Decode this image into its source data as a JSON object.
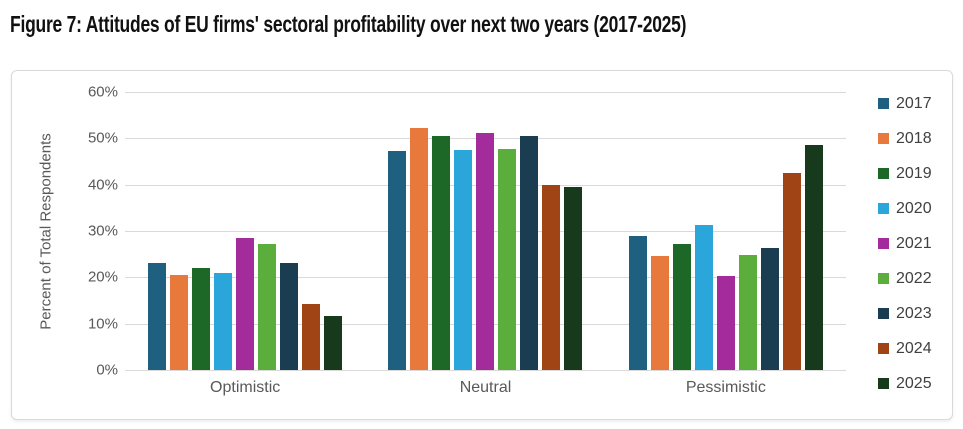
{
  "figure_title": "Figure 7: Attitudes of EU firms' sectoral profitability over next two years (2017-2025)",
  "chart_data": {
    "type": "bar",
    "title": "Figure 7: Attitudes of EU firms' sectoral profitability over next two years (2017-2025)",
    "xlabel": "",
    "ylabel": "Percent of Total Respondents",
    "ylim": [
      0,
      60
    ],
    "y_ticks": [
      "0%",
      "10%",
      "20%",
      "30%",
      "40%",
      "50%",
      "60%"
    ],
    "grid": true,
    "legend_position": "right",
    "categories": [
      "Optimistic",
      "Neutral",
      "Pessimistic"
    ],
    "series": [
      {
        "name": "2017",
        "color": "#1f5f80",
        "values": [
          23.0,
          47.3,
          29.0
        ]
      },
      {
        "name": "2018",
        "color": "#e8793c",
        "values": [
          20.6,
          52.2,
          24.5
        ]
      },
      {
        "name": "2019",
        "color": "#1e6827",
        "values": [
          22.0,
          50.4,
          27.3
        ]
      },
      {
        "name": "2020",
        "color": "#2ba6db",
        "values": [
          21.0,
          47.5,
          31.4
        ]
      },
      {
        "name": "2021",
        "color": "#a42b9b",
        "values": [
          28.6,
          51.1,
          20.2
        ]
      },
      {
        "name": "2022",
        "color": "#5cae3c",
        "values": [
          27.2,
          47.8,
          24.8
        ]
      },
      {
        "name": "2023",
        "color": "#1b3d52",
        "values": [
          23.0,
          50.4,
          26.4
        ]
      },
      {
        "name": "2024",
        "color": "#a04416",
        "values": [
          14.3,
          39.9,
          42.5
        ]
      },
      {
        "name": "2025",
        "color": "#17391c",
        "values": [
          11.6,
          39.5,
          48.6
        ]
      }
    ]
  }
}
